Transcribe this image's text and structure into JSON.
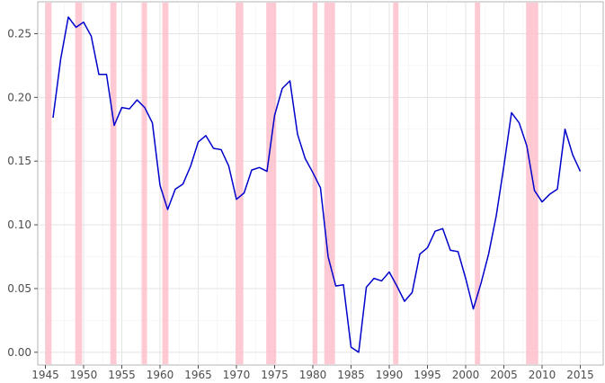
{
  "chart_data": {
    "type": "line",
    "title": "",
    "xlabel": "",
    "ylabel": "",
    "xlim": [
      1944,
      2018
    ],
    "ylim": [
      -0.01,
      0.275
    ],
    "x_ticks": [
      1945,
      1950,
      1955,
      1960,
      1965,
      1970,
      1975,
      1980,
      1985,
      1990,
      1995,
      2000,
      2005,
      2010,
      2015
    ],
    "x_tick_labels": [
      "1945",
      "1950",
      "1955",
      "1960",
      "1965",
      "1970",
      "1975",
      "1980",
      "1985",
      "1990",
      "1995",
      "2000",
      "2005",
      "2010",
      "2015"
    ],
    "y_ticks": [
      0.0,
      0.05,
      0.1,
      0.15,
      0.2,
      0.25
    ],
    "y_tick_labels": [
      "0.00",
      "0.05",
      "0.10",
      "0.15",
      "0.20",
      "0.25"
    ],
    "grid": true,
    "line_color": "#0000cc",
    "shade_color": "#ffc0cb",
    "shaded_periods": [
      [
        1945.0,
        1945.8
      ],
      [
        1948.9,
        1949.8
      ],
      [
        1953.5,
        1954.3
      ],
      [
        1957.6,
        1958.3
      ],
      [
        1960.3,
        1961.1
      ],
      [
        1969.9,
        1970.9
      ],
      [
        1973.9,
        1975.2
      ],
      [
        1980.0,
        1980.6
      ],
      [
        1981.5,
        1982.9
      ],
      [
        1990.5,
        1991.2
      ],
      [
        2001.2,
        2001.9
      ],
      [
        2007.9,
        2009.5
      ]
    ],
    "x": [
      1946,
      1947,
      1948,
      1949,
      1950,
      1951,
      1952,
      1953,
      1954,
      1955,
      1956,
      1957,
      1958,
      1959,
      1960,
      1961,
      1962,
      1963,
      1964,
      1965,
      1966,
      1967,
      1968,
      1969,
      1970,
      1971,
      1972,
      1973,
      1974,
      1975,
      1976,
      1977,
      1978,
      1979,
      1980,
      1981,
      1982,
      1983,
      1984,
      1985,
      1986,
      1987,
      1988,
      1989,
      1990,
      1991,
      1992,
      1993,
      1994,
      1995,
      1996,
      1997,
      1998,
      1999,
      2000,
      2001,
      2002,
      2003,
      2004,
      2005,
      2006,
      2007,
      2008,
      2009,
      2010,
      2011,
      2012,
      2013,
      2014,
      2015
    ],
    "series": [
      {
        "name": "",
        "values": [
          0.184,
          0.23,
          0.263,
          0.255,
          0.259,
          0.248,
          0.218,
          0.218,
          0.178,
          0.192,
          0.191,
          0.198,
          0.192,
          0.18,
          0.131,
          0.112,
          0.128,
          0.132,
          0.146,
          0.165,
          0.17,
          0.16,
          0.159,
          0.146,
          0.12,
          0.125,
          0.143,
          0.145,
          0.142,
          0.186,
          0.207,
          0.213,
          0.171,
          0.152,
          0.141,
          0.129,
          0.075,
          0.052,
          0.053,
          0.004,
          0.0,
          0.051,
          0.058,
          0.056,
          0.063,
          0.052,
          0.04,
          0.047,
          0.077,
          0.082,
          0.095,
          0.097,
          0.08,
          0.079,
          0.058,
          0.034,
          0.054,
          0.077,
          0.107,
          0.146,
          0.188,
          0.18,
          0.162,
          0.127,
          0.118,
          0.124,
          0.128,
          0.175,
          0.155,
          0.142
        ]
      }
    ]
  }
}
